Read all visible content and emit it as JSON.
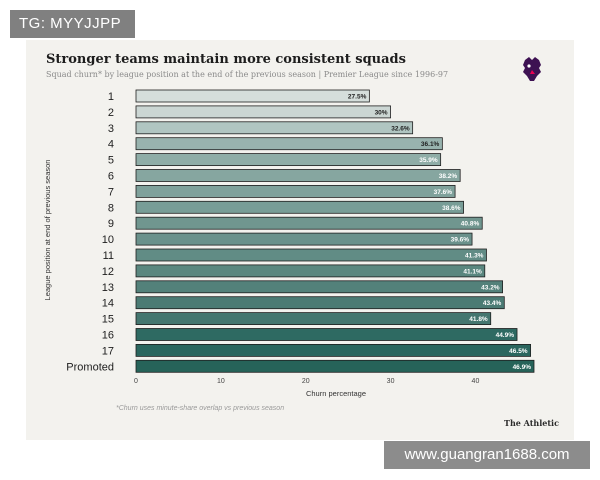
{
  "badge": {
    "text": "TG: MYYJJPP"
  },
  "watermark": {
    "text": "www.guangran1688.com"
  },
  "chart_data": {
    "type": "bar",
    "orientation": "horizontal",
    "title": "Stronger teams maintain more consistent squads",
    "subtitle": "Squad churn* by league position at the end of the previous season | Premier League since 1996-97",
    "xlabel": "Churn percentage",
    "ylabel": "League position at end of previous season",
    "xlim": [
      0,
      46.9
    ],
    "xticks": [
      0,
      10,
      20,
      30,
      40
    ],
    "categories": [
      "1",
      "2",
      "3",
      "4",
      "5",
      "6",
      "7",
      "8",
      "9",
      "10",
      "11",
      "12",
      "13",
      "14",
      "15",
      "16",
      "17",
      "Promoted"
    ],
    "values": [
      27.5,
      30,
      32.6,
      36.1,
      35.9,
      38.2,
      37.6,
      38.6,
      40.8,
      39.6,
      41.3,
      41.1,
      43.2,
      43.4,
      41.8,
      44.9,
      46.5,
      46.9
    ],
    "value_labels": [
      "27.5%",
      "30%",
      "32.6%",
      "36.1%",
      "35.9%",
      "38.2%",
      "37.6%",
      "38.6%",
      "40.8%",
      "39.6%",
      "41.3%",
      "41.1%",
      "43.2%",
      "43.4%",
      "41.8%",
      "44.9%",
      "46.5%",
      "46.9%"
    ],
    "colors": [
      "#d5dedb",
      "#cbd6d3",
      "#b0c5c1",
      "#98b3ae",
      "#8fada7",
      "#86a6a0",
      "#7fa19b",
      "#789d97",
      "#70968f",
      "#6a918b",
      "#618c85",
      "#5a877f",
      "#53817a",
      "#4b7b74",
      "#44766f",
      "#2e6a62",
      "#2a665e",
      "#266359"
    ],
    "footnote": "*Churn uses minute-share overlap vs previous season",
    "source": "The Athletic"
  }
}
